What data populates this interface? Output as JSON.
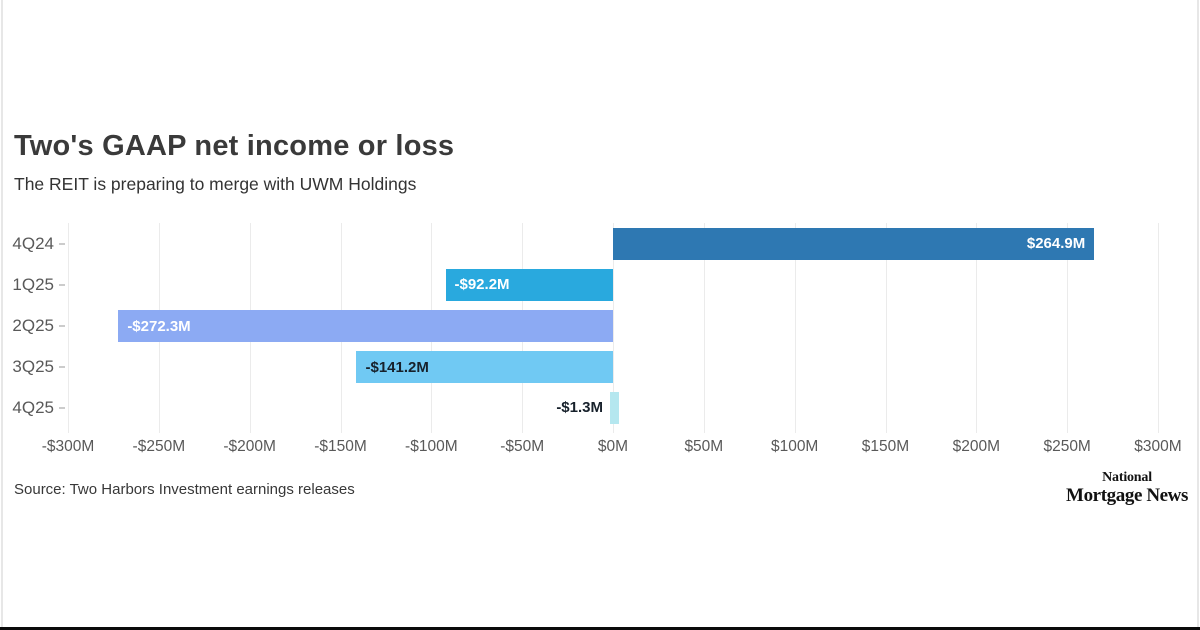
{
  "header": {
    "title": "Two's GAAP net income or loss",
    "subtitle": "The REIT is preparing to merge with UWM Holdings"
  },
  "chart_data": {
    "type": "bar",
    "orientation": "horizontal",
    "title": "Two's GAAP net income or loss",
    "subtitle": "The REIT is preparing to merge with UWM Holdings",
    "unit": "millions USD",
    "categories": [
      "4Q24",
      "1Q25",
      "2Q25",
      "3Q25",
      "4Q25"
    ],
    "values": [
      264.9,
      -92.2,
      -272.3,
      -141.2,
      -1.3
    ],
    "value_labels": [
      "$264.9M",
      "-$92.2M",
      "-$272.3M",
      "-$141.2M",
      "-$1.3M"
    ],
    "bar_colors": [
      "#2e78b2",
      "#29a9de",
      "#8caaf3",
      "#70c9f3",
      "#b5e7ef"
    ],
    "value_label_colors": [
      "#ffffff",
      "#ffffff",
      "#ffffff",
      "#17212b",
      "#17212b"
    ],
    "value_label_inside": [
      true,
      true,
      true,
      true,
      false
    ],
    "xlim": [
      -300,
      300
    ],
    "x_tick_step": 50,
    "x_tick_labels": [
      "-$300M",
      "-$250M",
      "-$200M",
      "-$150M",
      "-$100M",
      "-$50M",
      "$0M",
      "$50M",
      "$100M",
      "$150M",
      "$200M",
      "$250M",
      "$300M"
    ],
    "grid": true,
    "gridline_color": "#ebebeb",
    "legend": "none"
  },
  "footer": {
    "source": "Source: Two Harbors Investment earnings releases",
    "logo_line1": "National",
    "logo_line2": "Mortgage News"
  }
}
